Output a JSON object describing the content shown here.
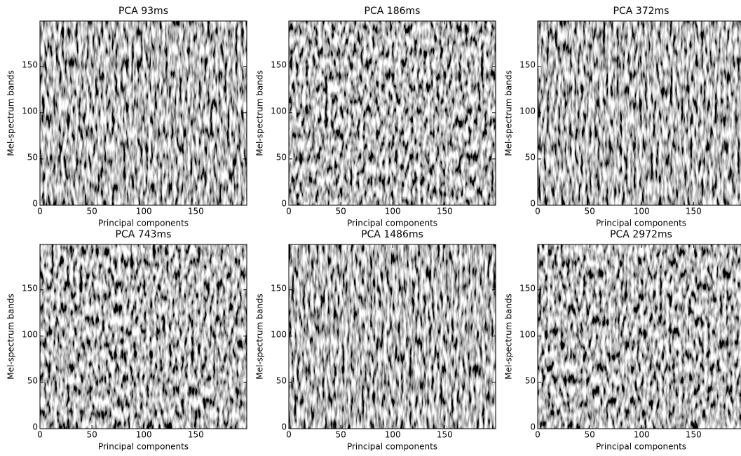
{
  "chart_data": [
    {
      "type": "image",
      "title": "PCA 93ms",
      "xlabel": "Principal components",
      "ylabel": "Mel-spectrum bands",
      "xlim": [
        0,
        199
      ],
      "ylim": [
        0,
        199
      ],
      "xticks": [
        0,
        50,
        100,
        150
      ],
      "yticks": [
        0,
        50,
        100,
        150
      ]
    },
    {
      "type": "image",
      "title": "PCA 186ms",
      "xlabel": "Principal components",
      "ylabel": "Mel-spectrum bands",
      "xlim": [
        0,
        199
      ],
      "ylim": [
        0,
        199
      ],
      "xticks": [
        0,
        50,
        100,
        150
      ],
      "yticks": [
        0,
        50,
        100,
        150
      ]
    },
    {
      "type": "image",
      "title": "PCA 372ms",
      "xlabel": "Principal components",
      "ylabel": "Mel-spectrum bands",
      "xlim": [
        0,
        199
      ],
      "ylim": [
        0,
        199
      ],
      "xticks": [
        0,
        50,
        100,
        150
      ],
      "yticks": [
        0,
        50,
        100,
        150
      ]
    },
    {
      "type": "image",
      "title": "PCA 743ms",
      "xlabel": "Principal components",
      "ylabel": "Mel-spectrum bands",
      "xlim": [
        0,
        199
      ],
      "ylim": [
        0,
        199
      ],
      "xticks": [
        0,
        50,
        100,
        150
      ],
      "yticks": [
        0,
        50,
        100,
        150
      ]
    },
    {
      "type": "image",
      "title": "PCA 1486ms",
      "xlabel": "Principal components",
      "ylabel": "Mel-spectrum bands",
      "xlim": [
        0,
        199
      ],
      "ylim": [
        0,
        199
      ],
      "xticks": [
        0,
        50,
        100,
        150
      ],
      "yticks": [
        0,
        50,
        100,
        150
      ]
    },
    {
      "type": "image",
      "title": "PCA 2972ms",
      "xlabel": "Principal components",
      "ylabel": "Mel-spectrum bands",
      "xlim": [
        0,
        199
      ],
      "ylim": [
        0,
        199
      ],
      "xticks": [
        0,
        50,
        100,
        150
      ],
      "yticks": [
        0,
        50,
        100,
        150
      ]
    }
  ]
}
